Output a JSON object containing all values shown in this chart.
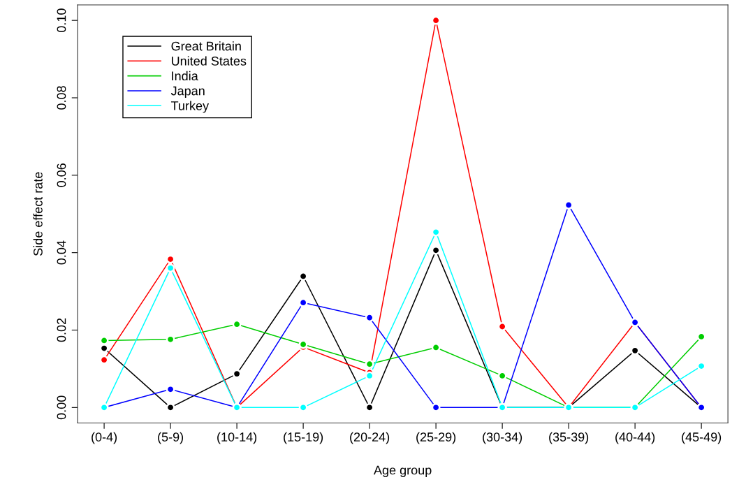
{
  "chart_data": {
    "type": "line",
    "xlabel": "Age group",
    "ylabel": "Side effect rate",
    "categories": [
      "(0-4)",
      "(5-9)",
      "(10-14)",
      "(15-19)",
      "(20-24)",
      "(25-29)",
      "(30-34)",
      "(35-39)",
      "(40-44)",
      "(45-49)"
    ],
    "series": [
      {
        "name": "Great Britain",
        "color": "#000000",
        "values": [
          0.0153,
          0,
          0.0087,
          0.0339,
          0,
          0.0406,
          0,
          0,
          0.0147,
          0
        ]
      },
      {
        "name": "United States",
        "color": "#ff0000",
        "values": [
          0.0123,
          0.0383,
          0,
          0.0156,
          0.009,
          0.1,
          0.0209,
          0,
          0.022,
          0
        ]
      },
      {
        "name": "India",
        "color": "#00cd00",
        "values": [
          0.0173,
          0.0176,
          0.0215,
          0.0163,
          0.0112,
          0.0155,
          0.0082,
          0,
          0,
          0.0183
        ]
      },
      {
        "name": "Japan",
        "color": "#0000ff",
        "values": [
          0,
          0.0047,
          0,
          0.0271,
          0.0232,
          0,
          0,
          0.0523,
          0.022,
          0
        ]
      },
      {
        "name": "Turkey",
        "color": "#00ffff",
        "values": [
          0,
          0.036,
          0,
          0,
          0.0082,
          0.0453,
          0,
          0,
          0,
          0.0107
        ]
      }
    ],
    "ylim": [
      -0.004,
      0.104
    ],
    "yticks": [
      {
        "value": 0,
        "label": "0.00"
      },
      {
        "value": 0.02,
        "label": "0.02"
      },
      {
        "value": 0.04,
        "label": "0.04"
      },
      {
        "value": 0.06,
        "label": "0.06"
      },
      {
        "value": 0.08,
        "label": "0.08"
      },
      {
        "value": 0.1,
        "label": "0.10"
      }
    ],
    "legend": "top left",
    "marker": "circle",
    "line_style": "solid",
    "grid": false
  }
}
